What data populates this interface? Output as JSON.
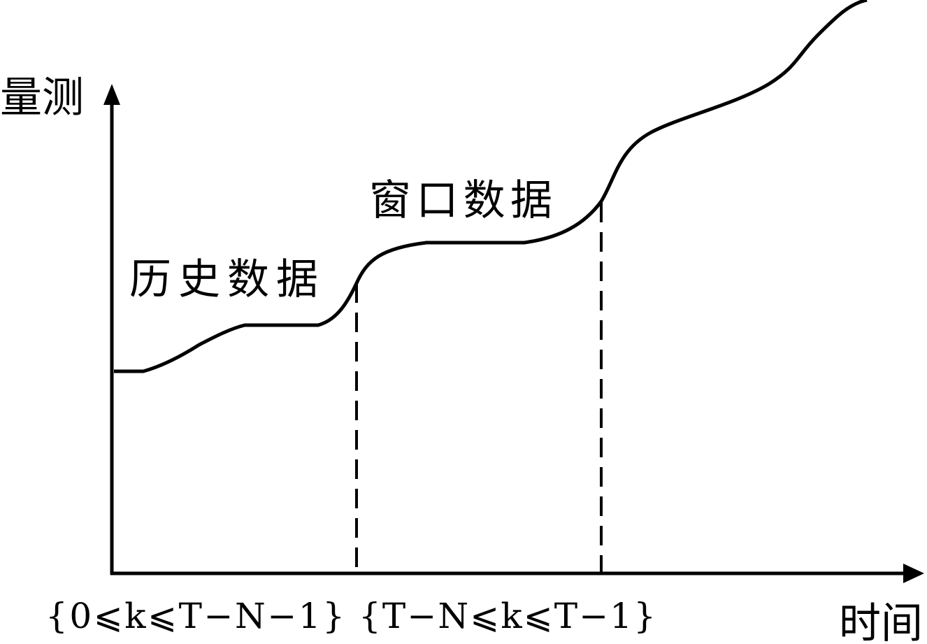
{
  "axes": {
    "y_label": "量测",
    "x_label": "时间"
  },
  "regions": [
    {
      "label": "历史数据",
      "range": "{0⩽k⩽T−N−1}"
    },
    {
      "label": "窗口数据",
      "range": "{T−N⩽k⩽T−1}"
    }
  ]
}
